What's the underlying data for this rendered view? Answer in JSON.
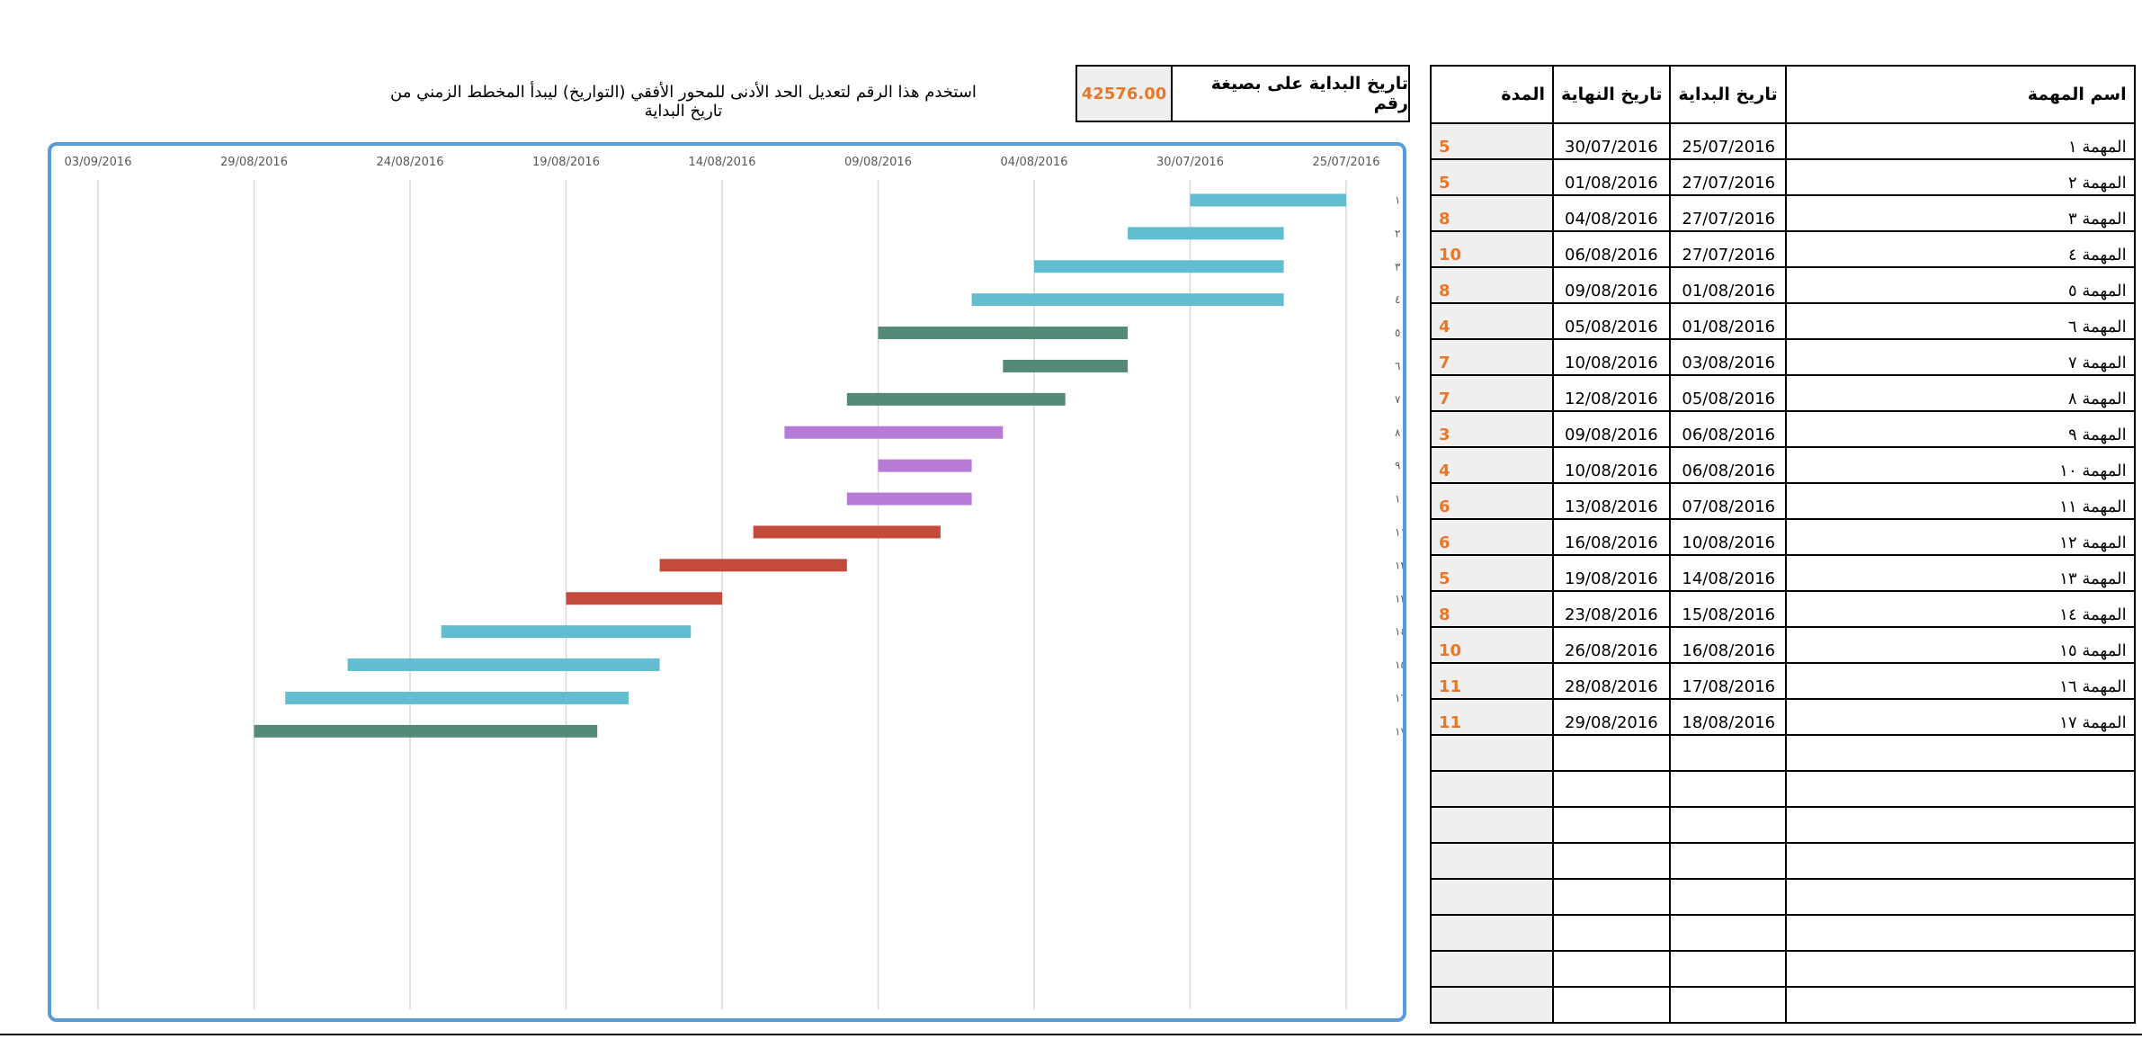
{
  "table": {
    "headers": {
      "task_name": "اسم المهمة",
      "start_date": "تاريخ البداية",
      "end_date": "تاريخ النهاية",
      "duration": "المدة"
    },
    "rows": [
      {
        "name": "المهمة ١",
        "start": "25/07/2016",
        "end": "30/07/2016",
        "duration": "5"
      },
      {
        "name": "المهمة ٢",
        "start": "27/07/2016",
        "end": "01/08/2016",
        "duration": "5"
      },
      {
        "name": "المهمة ٣",
        "start": "27/07/2016",
        "end": "04/08/2016",
        "duration": "8"
      },
      {
        "name": "المهمة ٤",
        "start": "27/07/2016",
        "end": "06/08/2016",
        "duration": "10"
      },
      {
        "name": "المهمة ٥",
        "start": "01/08/2016",
        "end": "09/08/2016",
        "duration": "8"
      },
      {
        "name": "المهمة ٦",
        "start": "01/08/2016",
        "end": "05/08/2016",
        "duration": "4"
      },
      {
        "name": "المهمة ٧",
        "start": "03/08/2016",
        "end": "10/08/2016",
        "duration": "7"
      },
      {
        "name": "المهمة ٨",
        "start": "05/08/2016",
        "end": "12/08/2016",
        "duration": "7"
      },
      {
        "name": "المهمة ٩",
        "start": "06/08/2016",
        "end": "09/08/2016",
        "duration": "3"
      },
      {
        "name": "المهمة ١٠",
        "start": "06/08/2016",
        "end": "10/08/2016",
        "duration": "4"
      },
      {
        "name": "المهمة ١١",
        "start": "07/08/2016",
        "end": "13/08/2016",
        "duration": "6"
      },
      {
        "name": "المهمة ١٢",
        "start": "10/08/2016",
        "end": "16/08/2016",
        "duration": "6"
      },
      {
        "name": "المهمة ١٣",
        "start": "14/08/2016",
        "end": "19/08/2016",
        "duration": "5"
      },
      {
        "name": "المهمة ١٤",
        "start": "15/08/2016",
        "end": "23/08/2016",
        "duration": "8"
      },
      {
        "name": "المهمة ١٥",
        "start": "16/08/2016",
        "end": "26/08/2016",
        "duration": "10"
      },
      {
        "name": "المهمة ١٦",
        "start": "17/08/2016",
        "end": "28/08/2016",
        "duration": "11"
      },
      {
        "name": "المهمة ١٧",
        "start": "18/08/2016",
        "end": "29/08/2016",
        "duration": "11"
      }
    ],
    "empty_rows": 8
  },
  "start_number": {
    "label": "تاريخ البداية على بصيغة رقم",
    "value": "42576.00"
  },
  "instruction": "استخدم هذا الرقم لتعديل الحد الأدنى للمحور الأفقي (التواريخ) ليبدأ المخطط الزمني من تاريخ البداية",
  "colors": {
    "accent_value": "#E8772A",
    "chart_border": "#5B9BD5",
    "teal": "#63BDD0",
    "green": "#548B77",
    "purple": "#B77AD6",
    "red": "#C44B3C"
  },
  "chart_data": {
    "type": "bar",
    "orientation": "horizontal",
    "x_axis": "reversed",
    "x_axis_position": "top",
    "xlim": [
      "25/07/2016",
      "03/09/2016"
    ],
    "tick_labels": [
      "25/07/2016",
      "30/07/2016",
      "04/08/2016",
      "09/08/2016",
      "14/08/2016",
      "19/08/2016",
      "24/08/2016",
      "29/08/2016",
      "03/09/2016"
    ],
    "grid": true,
    "categories": [
      "المهمة ١",
      "المهمة ٢",
      "المهمة ٣",
      "المهمة ٤",
      "المهمة ٥",
      "المهمة ٦",
      "المهمة ٧",
      "المهمة ٨",
      "المهمة ٩",
      "المهمة ١٠",
      "المهمة ١١",
      "المهمة ١٢",
      "المهمة ١٣",
      "المهمة ١٤",
      "المهمة ١٥",
      "المهمة ١٦",
      "المهمة ١٧"
    ],
    "bars": [
      {
        "start": "25/07/2016",
        "end": "30/07/2016",
        "color": "teal"
      },
      {
        "start": "27/07/2016",
        "end": "01/08/2016",
        "color": "teal"
      },
      {
        "start": "27/07/2016",
        "end": "04/08/2016",
        "color": "teal"
      },
      {
        "start": "27/07/2016",
        "end": "06/08/2016",
        "color": "teal"
      },
      {
        "start": "01/08/2016",
        "end": "09/08/2016",
        "color": "green"
      },
      {
        "start": "01/08/2016",
        "end": "05/08/2016",
        "color": "green"
      },
      {
        "start": "03/08/2016",
        "end": "10/08/2016",
        "color": "green"
      },
      {
        "start": "05/08/2016",
        "end": "12/08/2016",
        "color": "purple"
      },
      {
        "start": "06/08/2016",
        "end": "09/08/2016",
        "color": "purple"
      },
      {
        "start": "06/08/2016",
        "end": "10/08/2016",
        "color": "purple"
      },
      {
        "start": "07/08/2016",
        "end": "13/08/2016",
        "color": "red"
      },
      {
        "start": "10/08/2016",
        "end": "16/08/2016",
        "color": "red"
      },
      {
        "start": "14/08/2016",
        "end": "19/08/2016",
        "color": "red"
      },
      {
        "start": "15/08/2016",
        "end": "23/08/2016",
        "color": "teal"
      },
      {
        "start": "16/08/2016",
        "end": "26/08/2016",
        "color": "teal"
      },
      {
        "start": "17/08/2016",
        "end": "28/08/2016",
        "color": "teal"
      },
      {
        "start": "18/08/2016",
        "end": "29/08/2016",
        "color": "green"
      }
    ]
  }
}
